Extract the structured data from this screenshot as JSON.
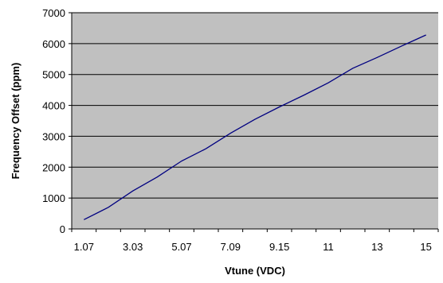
{
  "chart_data": {
    "type": "line",
    "title": "",
    "xlabel": "Vtune (VDC)",
    "ylabel": "Frequency Offset (ppm)",
    "x": [
      1.07,
      2.05,
      3.03,
      4.05,
      5.07,
      6.08,
      7.09,
      8.12,
      9.15,
      10.08,
      11.0,
      12.0,
      13.0,
      14.0,
      15.0
    ],
    "x_tick_labels": [
      "1.07",
      "3.03",
      "5.07",
      "7.09",
      "9.15",
      "11",
      "13",
      "15"
    ],
    "series": [
      {
        "values": [
          300,
          700,
          1230,
          1680,
          2200,
          2600,
          3100,
          3550,
          3950,
          4330,
          4730,
          5200,
          5550,
          5920,
          6280
        ]
      }
    ],
    "ylim": [
      0,
      7000
    ],
    "yticks": [
      0,
      1000,
      2000,
      3000,
      4000,
      5000,
      6000,
      7000
    ],
    "grid": true,
    "legend": "none",
    "colors": {
      "plot_background": "#c0c0c0",
      "line": "#000080",
      "gridline": "#000000"
    }
  }
}
